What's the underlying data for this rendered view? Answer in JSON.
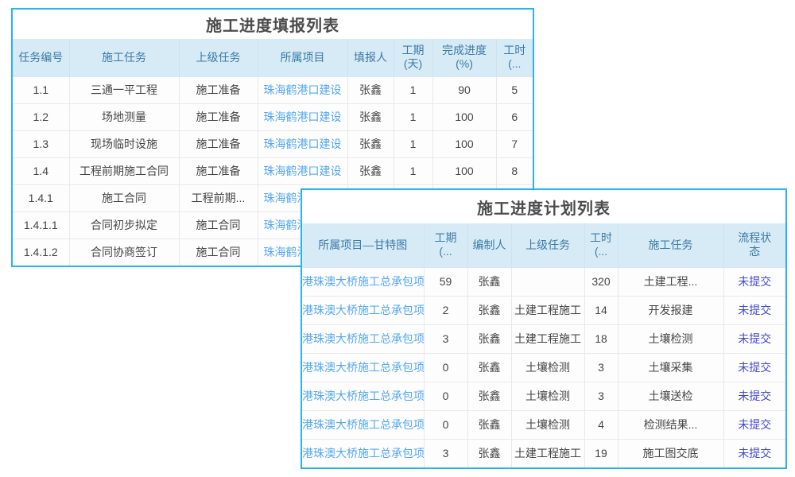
{
  "colors": {
    "bg": "#ffffff",
    "border": "#29b4e8",
    "header_bg": "#d7ebf7",
    "header_text": "#3b7aa4",
    "title_text": "#4c4c4c",
    "body_text": "#454545",
    "link": "#55a8f0",
    "status_link": "#4449cf",
    "row_separator": "#e9e9e9",
    "column_separator": "#e8e8e8",
    "header_separator": "#cde2f0"
  },
  "report_table": {
    "title": "施工进度填报列表",
    "columns": [
      "任务编号",
      "施工任务",
      "上级任务",
      "所属项目",
      "填报人",
      "工期\n(天)",
      "完成进度\n(%)",
      "工时\n(..."
    ],
    "rows": [
      [
        "1.1",
        "三通一平工程",
        "施工准备",
        "珠海鹤港口建设",
        "张鑫",
        "1",
        "90",
        "5"
      ],
      [
        "1.2",
        "场地测量",
        "施工准备",
        "珠海鹤港口建设",
        "张鑫",
        "1",
        "100",
        "6"
      ],
      [
        "1.3",
        "现场临时设施",
        "施工准备",
        "珠海鹤港口建设",
        "张鑫",
        "1",
        "100",
        "7"
      ],
      [
        "1.4",
        "工程前期施工合同",
        "施工准备",
        "珠海鹤港口建设",
        "张鑫",
        "1",
        "100",
        "8"
      ],
      [
        "1.4.1",
        "施工合同",
        "工程前期...",
        "珠海鹤港口建设",
        "",
        "",
        "",
        ""
      ],
      [
        "1.4.1.1",
        "合同初步拟定",
        "施工合同",
        "珠海鹤港口建设",
        "",
        "",
        "",
        ""
      ],
      [
        "1.4.1.2",
        "合同协商签订",
        "施工合同",
        "珠海鹤港口建设",
        "",
        "",
        "",
        ""
      ]
    ]
  },
  "plan_table": {
    "title": "施工进度计划列表",
    "columns": [
      "所属项目—甘特图",
      "工期\n(...",
      "编制人",
      "上级任务",
      "工时\n(...",
      "施工任务",
      "流程状\n态"
    ],
    "rows": [
      [
        "港珠澳大桥施工总承包项目",
        "59",
        "张鑫",
        "",
        "320",
        "土建工程...",
        "未提交"
      ],
      [
        "港珠澳大桥施工总承包项目",
        "2",
        "张鑫",
        "土建工程施工",
        "14",
        "开发报建",
        "未提交"
      ],
      [
        "港珠澳大桥施工总承包项目",
        "3",
        "张鑫",
        "土建工程施工",
        "18",
        "土壤检测",
        "未提交"
      ],
      [
        "港珠澳大桥施工总承包项目",
        "0",
        "张鑫",
        "土壤检测",
        "3",
        "土壤采集",
        "未提交"
      ],
      [
        "港珠澳大桥施工总承包项目",
        "0",
        "张鑫",
        "土壤检测",
        "3",
        "土壤送检",
        "未提交"
      ],
      [
        "港珠澳大桥施工总承包项目",
        "0",
        "张鑫",
        "土壤检测",
        "4",
        "检测结果...",
        "未提交"
      ],
      [
        "港珠澳大桥施工总承包项目",
        "3",
        "张鑫",
        "土建工程施工",
        "19",
        "施工图交底",
        "未提交"
      ]
    ]
  }
}
